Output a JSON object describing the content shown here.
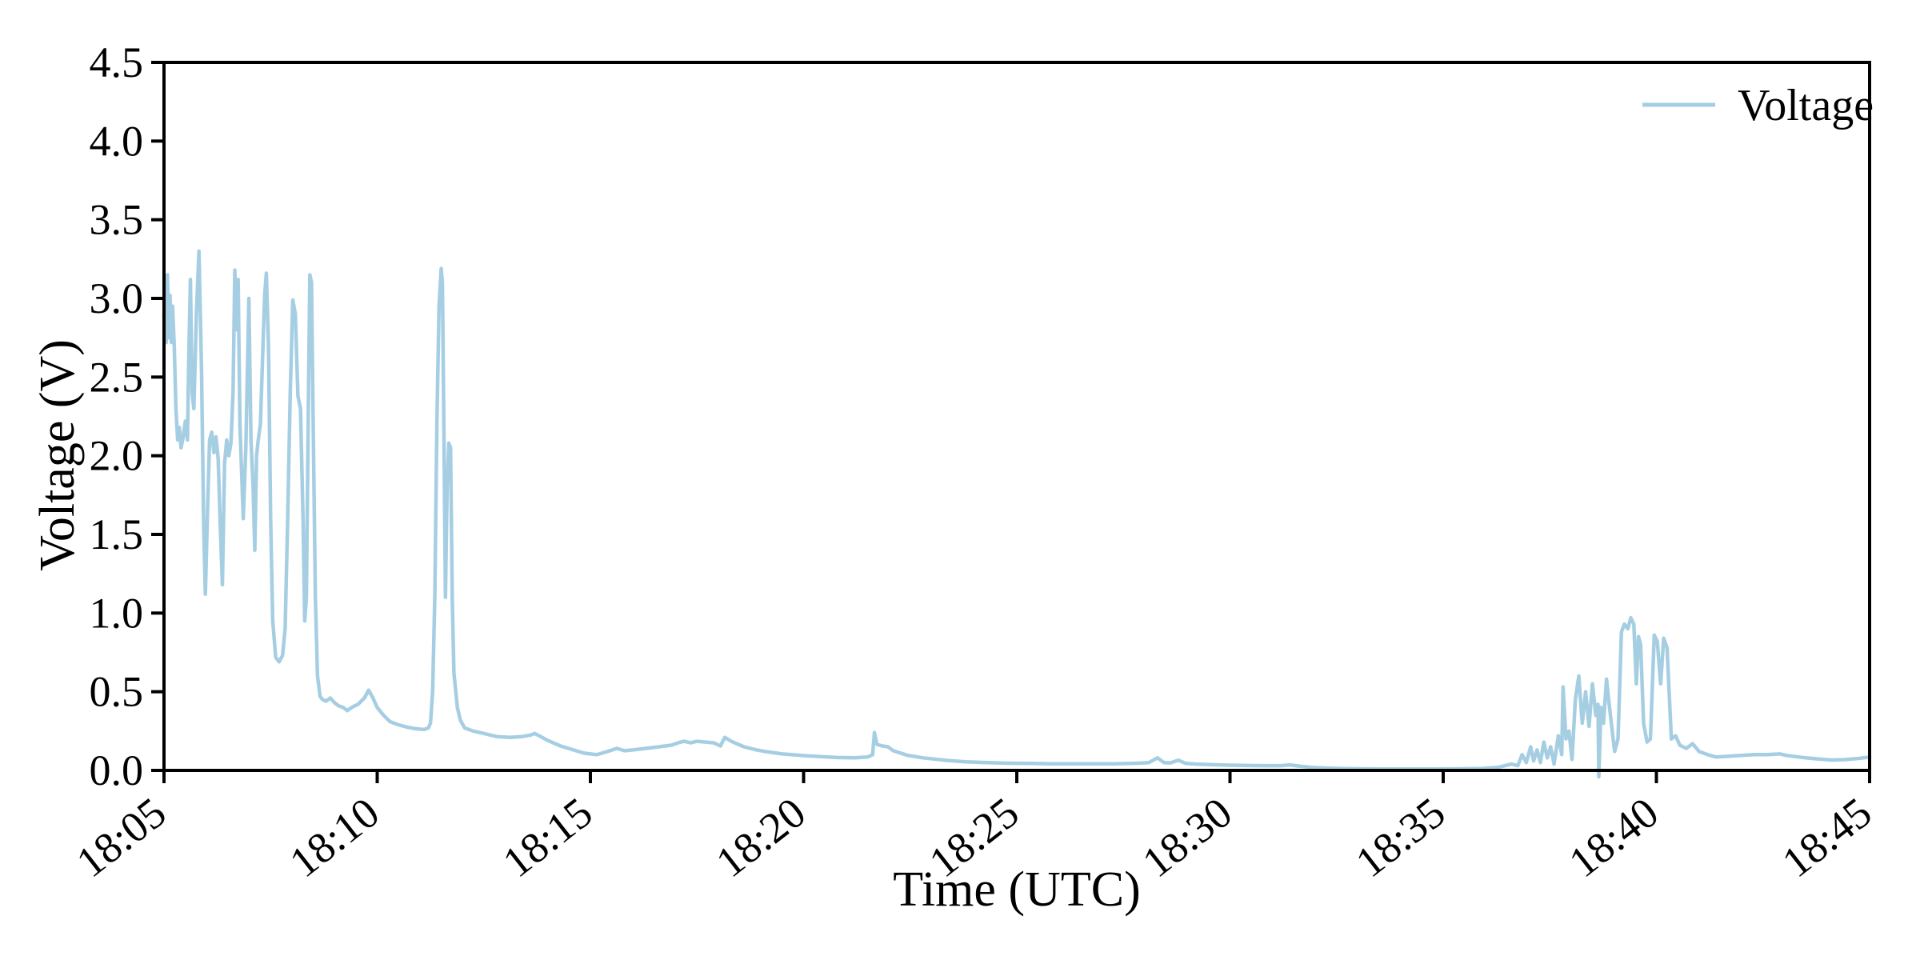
{
  "chart_data": {
    "type": "line",
    "title": "",
    "xlabel": "Time (UTC)",
    "ylabel": "Voltage (V)",
    "grid": false,
    "frame": true,
    "tick_direction": "out",
    "background_color": "#ffffff",
    "axis_color": "#000000",
    "ylim": [
      0.0,
      4.5
    ],
    "y_ticks": [
      {
        "value": 0.0,
        "label": "0.0"
      },
      {
        "value": 0.5,
        "label": "0.5"
      },
      {
        "value": 1.0,
        "label": "1.0"
      },
      {
        "value": 1.5,
        "label": "1.5"
      },
      {
        "value": 2.0,
        "label": "2.0"
      },
      {
        "value": 2.5,
        "label": "2.5"
      },
      {
        "value": 3.0,
        "label": "3.0"
      },
      {
        "value": 3.5,
        "label": "3.5"
      },
      {
        "value": 4.0,
        "label": "4.0"
      },
      {
        "value": 4.5,
        "label": "4.5"
      }
    ],
    "x_ticks": [
      {
        "minutes": 0,
        "label": "18:05"
      },
      {
        "minutes": 5,
        "label": "18:10"
      },
      {
        "minutes": 10,
        "label": "18:15"
      },
      {
        "minutes": 15,
        "label": "18:20"
      },
      {
        "minutes": 20,
        "label": "18:25"
      },
      {
        "minutes": 25,
        "label": "18:30"
      },
      {
        "minutes": 30,
        "label": "18:35"
      },
      {
        "minutes": 35,
        "label": "18:40"
      },
      {
        "minutes": 40,
        "label": "18:45"
      }
    ],
    "xlim_minutes": [
      0,
      40
    ],
    "x_unit": "minutes_after_18:05",
    "x_tick_label_rotation_deg": -38,
    "legend": {
      "position": "upper right",
      "entries": [
        {
          "label": "Voltage",
          "color": "#a6cee3"
        }
      ]
    },
    "series": [
      {
        "name": "Voltage",
        "color": "#a6cee3",
        "points": [
          [
            0.0,
            2.88
          ],
          [
            0.02,
            3.05
          ],
          [
            0.05,
            2.72
          ],
          [
            0.08,
            3.15
          ],
          [
            0.11,
            2.75
          ],
          [
            0.14,
            3.02
          ],
          [
            0.17,
            2.72
          ],
          [
            0.2,
            2.95
          ],
          [
            0.24,
            2.7
          ],
          [
            0.28,
            2.3
          ],
          [
            0.32,
            2.1
          ],
          [
            0.36,
            2.18
          ],
          [
            0.4,
            2.05
          ],
          [
            0.45,
            2.12
          ],
          [
            0.5,
            2.22
          ],
          [
            0.55,
            2.1
          ],
          [
            0.58,
            2.6
          ],
          [
            0.62,
            3.12
          ],
          [
            0.66,
            2.4
          ],
          [
            0.7,
            2.3
          ],
          [
            0.76,
            2.9
          ],
          [
            0.82,
            3.3
          ],
          [
            0.88,
            2.55
          ],
          [
            0.93,
            1.55
          ],
          [
            0.97,
            1.12
          ],
          [
            1.02,
            1.65
          ],
          [
            1.07,
            2.1
          ],
          [
            1.12,
            2.15
          ],
          [
            1.17,
            2.02
          ],
          [
            1.22,
            2.12
          ],
          [
            1.27,
            1.98
          ],
          [
            1.32,
            1.55
          ],
          [
            1.37,
            1.18
          ],
          [
            1.42,
            1.95
          ],
          [
            1.47,
            2.1
          ],
          [
            1.52,
            2.0
          ],
          [
            1.57,
            2.08
          ],
          [
            1.62,
            2.4
          ],
          [
            1.66,
            3.18
          ],
          [
            1.7,
            2.8
          ],
          [
            1.74,
            3.12
          ],
          [
            1.78,
            2.2
          ],
          [
            1.82,
            1.9
          ],
          [
            1.86,
            1.6
          ],
          [
            1.92,
            2.05
          ],
          [
            1.99,
            3.0
          ],
          [
            2.04,
            2.1
          ],
          [
            2.09,
            1.8
          ],
          [
            2.13,
            1.4
          ],
          [
            2.17,
            2.0
          ],
          [
            2.21,
            2.1
          ],
          [
            2.26,
            2.2
          ],
          [
            2.31,
            2.6
          ],
          [
            2.36,
            3.02
          ],
          [
            2.4,
            3.16
          ],
          [
            2.45,
            2.7
          ],
          [
            2.5,
            1.6
          ],
          [
            2.55,
            0.95
          ],
          [
            2.62,
            0.72
          ],
          [
            2.7,
            0.69
          ],
          [
            2.78,
            0.73
          ],
          [
            2.84,
            0.9
          ],
          [
            2.9,
            1.6
          ],
          [
            2.96,
            2.4
          ],
          [
            3.02,
            2.99
          ],
          [
            3.08,
            2.9
          ],
          [
            3.14,
            2.38
          ],
          [
            3.2,
            2.3
          ],
          [
            3.26,
            1.6
          ],
          [
            3.3,
            0.95
          ],
          [
            3.34,
            1.1
          ],
          [
            3.38,
            2.2
          ],
          [
            3.42,
            3.15
          ],
          [
            3.46,
            3.1
          ],
          [
            3.5,
            2.2
          ],
          [
            3.55,
            1.1
          ],
          [
            3.6,
            0.6
          ],
          [
            3.66,
            0.47
          ],
          [
            3.72,
            0.45
          ],
          [
            3.8,
            0.44
          ],
          [
            3.9,
            0.46
          ],
          [
            4.0,
            0.43
          ],
          [
            4.1,
            0.41
          ],
          [
            4.2,
            0.4
          ],
          [
            4.3,
            0.38
          ],
          [
            4.4,
            0.4
          ],
          [
            4.55,
            0.42
          ],
          [
            4.7,
            0.46
          ],
          [
            4.8,
            0.51
          ],
          [
            4.9,
            0.46
          ],
          [
            5.0,
            0.4
          ],
          [
            5.15,
            0.35
          ],
          [
            5.3,
            0.31
          ],
          [
            5.5,
            0.29
          ],
          [
            5.7,
            0.275
          ],
          [
            5.9,
            0.265
          ],
          [
            6.1,
            0.26
          ],
          [
            6.2,
            0.27
          ],
          [
            6.25,
            0.3
          ],
          [
            6.3,
            0.5
          ],
          [
            6.35,
            1.1
          ],
          [
            6.4,
            2.2
          ],
          [
            6.45,
            2.95
          ],
          [
            6.5,
            3.19
          ],
          [
            6.53,
            3.1
          ],
          [
            6.56,
            2.3
          ],
          [
            6.6,
            1.1
          ],
          [
            6.64,
            1.8
          ],
          [
            6.68,
            2.08
          ],
          [
            6.72,
            2.05
          ],
          [
            6.76,
            1.1
          ],
          [
            6.8,
            0.62
          ],
          [
            6.88,
            0.4
          ],
          [
            6.95,
            0.32
          ],
          [
            7.05,
            0.27
          ],
          [
            7.25,
            0.25
          ],
          [
            7.5,
            0.235
          ],
          [
            7.8,
            0.215
          ],
          [
            8.1,
            0.21
          ],
          [
            8.4,
            0.215
          ],
          [
            8.6,
            0.225
          ],
          [
            8.69,
            0.235
          ],
          [
            8.8,
            0.22
          ],
          [
            9.0,
            0.19
          ],
          [
            9.3,
            0.155
          ],
          [
            9.6,
            0.13
          ],
          [
            9.85,
            0.11
          ],
          [
            10.0,
            0.105
          ],
          [
            10.15,
            0.1
          ],
          [
            10.4,
            0.12
          ],
          [
            10.62,
            0.14
          ],
          [
            10.8,
            0.125
          ],
          [
            11.0,
            0.13
          ],
          [
            11.3,
            0.14
          ],
          [
            11.6,
            0.15
          ],
          [
            11.9,
            0.16
          ],
          [
            12.05,
            0.175
          ],
          [
            12.2,
            0.185
          ],
          [
            12.35,
            0.175
          ],
          [
            12.5,
            0.185
          ],
          [
            12.7,
            0.18
          ],
          [
            12.9,
            0.175
          ],
          [
            13.05,
            0.155
          ],
          [
            13.15,
            0.21
          ],
          [
            13.3,
            0.185
          ],
          [
            13.6,
            0.15
          ],
          [
            13.9,
            0.13
          ],
          [
            14.1,
            0.12
          ],
          [
            14.5,
            0.105
          ],
          [
            15.0,
            0.094
          ],
          [
            15.4,
            0.088
          ],
          [
            15.8,
            0.082
          ],
          [
            16.2,
            0.08
          ],
          [
            16.5,
            0.085
          ],
          [
            16.62,
            0.1
          ],
          [
            16.66,
            0.24
          ],
          [
            16.72,
            0.165
          ],
          [
            16.85,
            0.155
          ],
          [
            16.98,
            0.15
          ],
          [
            17.1,
            0.125
          ],
          [
            17.45,
            0.095
          ],
          [
            17.8,
            0.08
          ],
          [
            18.3,
            0.065
          ],
          [
            18.8,
            0.055
          ],
          [
            19.3,
            0.05
          ],
          [
            19.8,
            0.046
          ],
          [
            20.3,
            0.044
          ],
          [
            20.8,
            0.042
          ],
          [
            21.3,
            0.042
          ],
          [
            21.8,
            0.042
          ],
          [
            22.3,
            0.042
          ],
          [
            22.8,
            0.045
          ],
          [
            23.1,
            0.05
          ],
          [
            23.3,
            0.08
          ],
          [
            23.45,
            0.05
          ],
          [
            23.6,
            0.048
          ],
          [
            23.79,
            0.065
          ],
          [
            23.95,
            0.045
          ],
          [
            24.2,
            0.04
          ],
          [
            24.6,
            0.036
          ],
          [
            25.0,
            0.033
          ],
          [
            25.4,
            0.031
          ],
          [
            25.8,
            0.03
          ],
          [
            26.2,
            0.03
          ],
          [
            26.4,
            0.035
          ],
          [
            26.6,
            0.028
          ],
          [
            26.9,
            0.02
          ],
          [
            27.2,
            0.015
          ],
          [
            27.6,
            0.012
          ],
          [
            28.0,
            0.01
          ],
          [
            28.6,
            0.009
          ],
          [
            29.2,
            0.009
          ],
          [
            29.8,
            0.009
          ],
          [
            30.4,
            0.01
          ],
          [
            30.9,
            0.012
          ],
          [
            31.3,
            0.02
          ],
          [
            31.6,
            0.04
          ],
          [
            31.75,
            0.03
          ],
          [
            31.85,
            0.1
          ],
          [
            31.95,
            0.05
          ],
          [
            32.05,
            0.15
          ],
          [
            32.12,
            0.06
          ],
          [
            32.2,
            0.13
          ],
          [
            32.28,
            0.05
          ],
          [
            32.36,
            0.18
          ],
          [
            32.44,
            0.08
          ],
          [
            32.52,
            0.15
          ],
          [
            32.6,
            0.04
          ],
          [
            32.7,
            0.22
          ],
          [
            32.78,
            0.1
          ],
          [
            32.81,
            0.53
          ],
          [
            32.88,
            0.2
          ],
          [
            32.95,
            0.25
          ],
          [
            33.02,
            0.07
          ],
          [
            33.1,
            0.45
          ],
          [
            33.18,
            0.6
          ],
          [
            33.26,
            0.3
          ],
          [
            33.34,
            0.5
          ],
          [
            33.42,
            0.28
          ],
          [
            33.5,
            0.55
          ],
          [
            33.58,
            0.35
          ],
          [
            33.63,
            0.42
          ],
          [
            33.65,
            -0.04
          ],
          [
            33.7,
            0.4
          ],
          [
            33.76,
            0.3
          ],
          [
            33.83,
            0.58
          ],
          [
            33.9,
            0.4
          ],
          [
            34.02,
            0.12
          ],
          [
            34.1,
            0.2
          ],
          [
            34.18,
            0.88
          ],
          [
            34.25,
            0.93
          ],
          [
            34.33,
            0.9
          ],
          [
            34.4,
            0.97
          ],
          [
            34.47,
            0.93
          ],
          [
            34.53,
            0.55
          ],
          [
            34.58,
            0.85
          ],
          [
            34.63,
            0.8
          ],
          [
            34.7,
            0.3
          ],
          [
            34.78,
            0.18
          ],
          [
            34.86,
            0.2
          ],
          [
            34.95,
            0.86
          ],
          [
            35.02,
            0.82
          ],
          [
            35.1,
            0.55
          ],
          [
            35.17,
            0.84
          ],
          [
            35.25,
            0.78
          ],
          [
            35.35,
            0.2
          ],
          [
            35.45,
            0.22
          ],
          [
            35.55,
            0.16
          ],
          [
            35.7,
            0.14
          ],
          [
            35.85,
            0.17
          ],
          [
            36.0,
            0.12
          ],
          [
            36.2,
            0.1
          ],
          [
            36.4,
            0.085
          ],
          [
            36.7,
            0.09
          ],
          [
            37.0,
            0.095
          ],
          [
            37.3,
            0.1
          ],
          [
            37.6,
            0.1
          ],
          [
            37.9,
            0.105
          ],
          [
            38.05,
            0.095
          ],
          [
            38.2,
            0.09
          ],
          [
            38.5,
            0.08
          ],
          [
            38.8,
            0.072
          ],
          [
            39.1,
            0.066
          ],
          [
            39.4,
            0.068
          ],
          [
            39.7,
            0.075
          ],
          [
            40.0,
            0.085
          ]
        ]
      }
    ]
  }
}
